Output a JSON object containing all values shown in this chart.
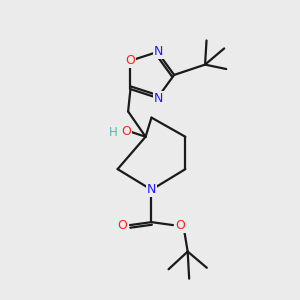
{
  "bg_color": "#ebebeb",
  "bond_color": "#1a1a1a",
  "bond_lw": 1.6,
  "atom_colors": {
    "N": "#1a1aff",
    "O": "#ff2020",
    "C": "#1a1a1a",
    "H": "#5ab4ac"
  },
  "font_size": 8.5
}
